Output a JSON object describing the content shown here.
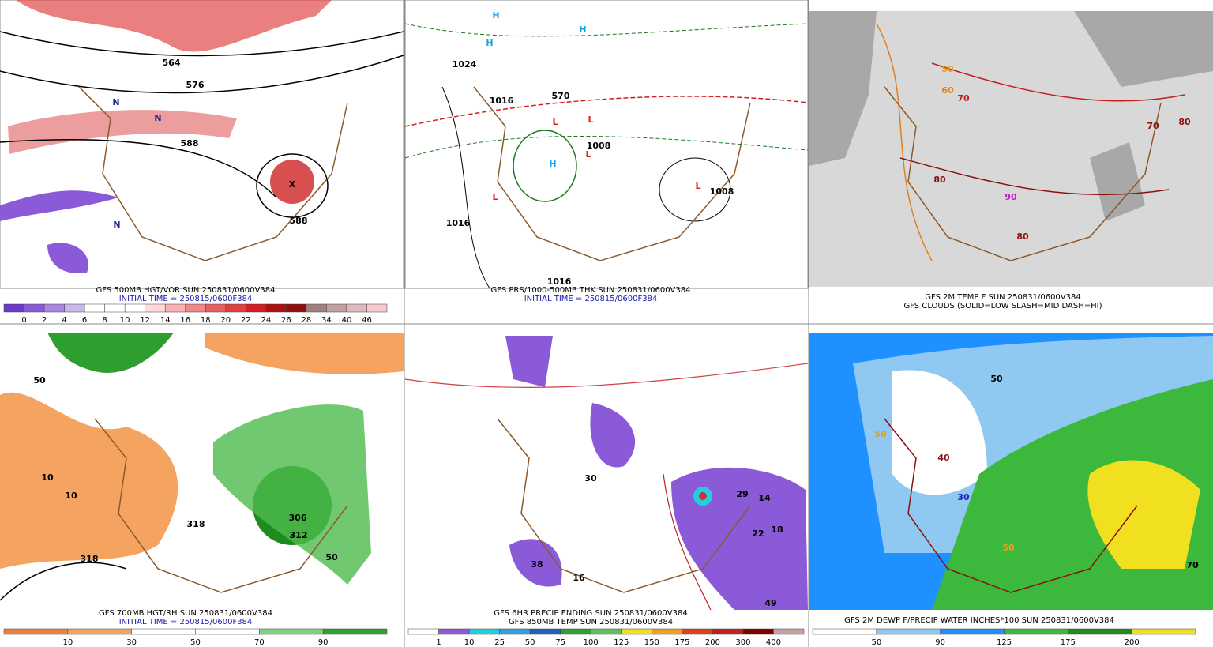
{
  "panels": [
    {
      "caption": [
        "GFS 500MB HGT/VOR SUN 250831/0600V384",
        "INITIAL TIME = 250815/0600F384"
      ],
      "colorbar": [
        0,
        2,
        4,
        6,
        8,
        10,
        12,
        14,
        16,
        18,
        20,
        22,
        24,
        26,
        28,
        34,
        40,
        46
      ],
      "map_labels": [
        "564",
        "576",
        "588",
        "588",
        "N",
        "N",
        "N",
        "X"
      ]
    },
    {
      "caption": [
        "GFS PRS/1000-500MB THK SUN 250831/0600V384",
        "INITIAL TIME = 250815/0600F384"
      ],
      "map_labels": [
        "1024",
        "1016",
        "1016",
        "1008",
        "1016",
        "570",
        "1008",
        "H",
        "H",
        "H",
        "H",
        "L",
        "L",
        "L",
        "L",
        "L"
      ]
    },
    {
      "caption": [
        "GFS 2M TEMP F SUN 250831/0600V384",
        "GFS CLOUDS (SOLID=LOW SLASH=MID DASH=HI)"
      ],
      "map_labels": [
        "60",
        "70",
        "80",
        "80",
        "90",
        "80",
        "70",
        "50"
      ]
    },
    {
      "caption": [
        "GFS 700MB HGT/RH SUN 250831/0600V384",
        "INITIAL TIME = 250815/0600F384"
      ],
      "colorbar": [
        10,
        30,
        50,
        70,
        90
      ],
      "map_labels": [
        "10",
        "10",
        "50",
        "306",
        "312",
        "318",
        "318",
        "50"
      ]
    },
    {
      "caption": [
        "GFS 6HR PRECIP ENDING SUN 250831/0600V384",
        "GFS 850MB TEMP SUN 250831/0600V384"
      ],
      "colorbar": [
        1,
        10,
        25,
        50,
        75,
        100,
        125,
        150,
        175,
        200,
        300,
        400
      ],
      "map_labels": [
        "30",
        "29",
        "14",
        "22",
        "18",
        "49",
        "16",
        "38"
      ]
    },
    {
      "caption": [
        "GFS 2M DEWP F/PRECIP WATER INCHES*100 SUN 250831/0600V384"
      ],
      "colorbar": [
        50,
        90,
        125,
        175,
        200
      ],
      "map_labels": [
        "50",
        "40",
        "30",
        "50",
        "50",
        "70"
      ]
    }
  ]
}
